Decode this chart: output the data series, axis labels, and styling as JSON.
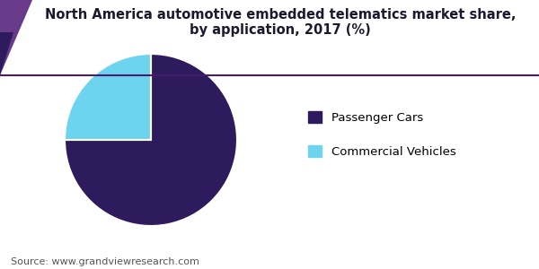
{
  "title": "North America automotive embedded telematics market share,\nby application, 2017 (%)",
  "title_fontsize": 10.5,
  "slices": [
    75,
    25
  ],
  "labels": [
    "Passenger Cars",
    "Commercial Vehicles"
  ],
  "colors": [
    "#2d1b5e",
    "#6dd4f0"
  ],
  "startangle": 90,
  "legend_labels": [
    "Passenger Cars",
    "Commercial Vehicles"
  ],
  "source_text": "Source: www.grandviewresearch.com",
  "source_fontsize": 8,
  "background_color": "#ffffff",
  "title_line_color": "#4a1a6e",
  "wedge_edge_color": "#ffffff",
  "header_triangle_color": "#4a1a6e",
  "title_color": "#1a1a2e"
}
